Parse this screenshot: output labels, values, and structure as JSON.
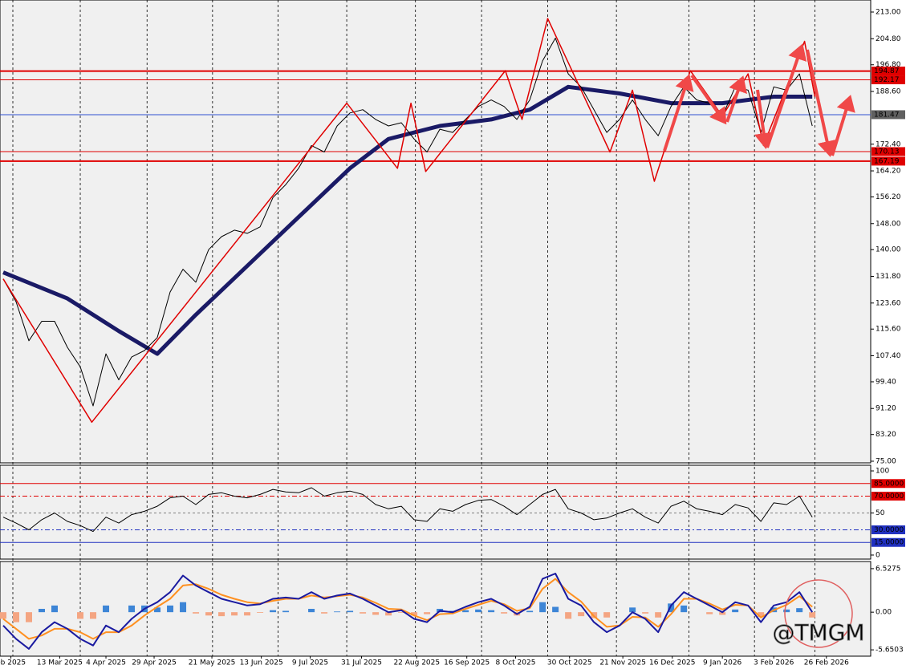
{
  "chart_data": [
    {
      "type": "line",
      "xlim": [
        -0.25,
        67.55
      ],
      "ylim": [
        74.5,
        216.7
      ],
      "yticks": [
        {
          "value": 213,
          "label": "213.00"
        },
        {
          "value": 204.8,
          "label": "204.80"
        },
        {
          "value": 196.8,
          "label": "196.80"
        },
        {
          "value": 188.6,
          "label": "188.60"
        },
        {
          "value": 172.4,
          "label": "172.40"
        },
        {
          "value": 164.2,
          "label": "164.20"
        },
        {
          "value": 156.2,
          "label": "156.20"
        },
        {
          "value": 148,
          "label": "148.00"
        },
        {
          "value": 140,
          "label": "140.00"
        },
        {
          "value": 131.8,
          "label": "131.80"
        },
        {
          "value": 123.6,
          "label": "123.60"
        },
        {
          "value": 115.6,
          "label": "115.60"
        },
        {
          "value": 107.4,
          "label": "107.40"
        },
        {
          "value": 99.4,
          "label": "99.40"
        },
        {
          "value": 91.2,
          "label": "91.20"
        },
        {
          "value": 83.2,
          "label": "83.20"
        },
        {
          "value": 75,
          "label": "75.00"
        }
      ],
      "xticks": [
        {
          "value": 0.6,
          "label": "eb 2025"
        },
        {
          "value": 4.4,
          "label": "13 Mar 2025"
        },
        {
          "value": 8,
          "label": "4 Apr 2025"
        },
        {
          "value": 11.75,
          "label": "29 Apr 2025"
        },
        {
          "value": 16.25,
          "label": "21 May 2025"
        },
        {
          "value": 20.1,
          "label": "13 Jun 2025"
        },
        {
          "value": 23.9,
          "label": "9 Jul 2025"
        },
        {
          "value": 27.9,
          "label": "31 Jul 2025"
        },
        {
          "value": 32.2,
          "label": "22 Aug 2025"
        },
        {
          "value": 36.1,
          "label": "16 Sep 2025"
        },
        {
          "value": 39.9,
          "label": "8 Oct 2025"
        },
        {
          "value": 44.1,
          "label": "30 Oct 2025"
        },
        {
          "value": 48.25,
          "label": "21 Nov 2025"
        },
        {
          "value": 52.1,
          "label": "16 Dec 2025"
        },
        {
          "value": 56,
          "label": "9 Jan 2026"
        },
        {
          "value": 60,
          "label": "3 Feb 2026"
        },
        {
          "value": 64.1,
          "label": "26 Feb 2026"
        }
      ],
      "xgrid": [
        0.75,
        6,
        11.2,
        16.3,
        21.4,
        26.75,
        32.1,
        37.25,
        42.4,
        47.75,
        53.4,
        58.5,
        63.2
      ],
      "levels": [
        {
          "value": 194.87,
          "color": "#e00000",
          "width": 2,
          "box": true
        },
        {
          "value": 192.17,
          "color": "#e00000",
          "width": 1,
          "box": true
        },
        {
          "value": 181.47,
          "color": "#3050d0",
          "width": 1,
          "box": true,
          "box_color": "#606060"
        },
        {
          "value": 170.13,
          "color": "#e00000",
          "width": 1,
          "box": true
        },
        {
          "value": 167.19,
          "color": "#e00000",
          "width": 2,
          "box": true
        }
      ],
      "series": [
        {
          "color": "#1a1a66",
          "width": 5,
          "x": [
            0,
            5,
            9,
            12,
            15,
            19,
            23,
            27,
            30,
            34,
            38,
            41,
            44,
            48,
            52,
            56,
            60,
            63
          ],
          "values": [
            133,
            125,
            115,
            108,
            120,
            135,
            150,
            165,
            174,
            178,
            180,
            183,
            190,
            188,
            185,
            185,
            187,
            187
          ]
        },
        {
          "color": "#000000",
          "width": 1,
          "values": [
            131,
            124,
            112,
            118,
            118,
            110,
            104,
            92,
            108,
            100,
            107,
            109,
            113,
            127,
            134,
            130,
            140,
            144,
            146,
            145,
            147,
            156,
            160,
            165,
            172,
            170,
            178,
            182,
            183,
            180,
            178,
            179,
            174,
            170,
            177,
            176,
            180,
            184,
            186,
            184,
            180,
            186,
            198,
            205,
            194,
            190,
            183,
            176,
            180,
            186,
            180,
            175,
            184,
            190,
            186,
            185,
            181,
            190,
            189,
            176,
            190,
            189,
            194,
            178
          ]
        },
        {
          "color": "#e00000",
          "width": 1.5,
          "x": [
            0,
            6.9,
            26.75,
            30.7,
            31.75,
            32.9,
            39.1,
            40.4,
            42.4,
            47.25,
            49,
            50.7,
            53.5,
            56,
            58,
            59.2,
            62.4,
            63.2
          ],
          "values": [
            131,
            87,
            185,
            165,
            185,
            164,
            195,
            180,
            211,
            170,
            189,
            161,
            195,
            181,
            194,
            172,
            204,
            187
          ]
        }
      ]
    },
    {
      "type": "line",
      "ylim": [
        -4.8,
        106.7
      ],
      "yticks": [
        100,
        50,
        0
      ],
      "levels": [
        {
          "value": 85,
          "label": "85.0000",
          "color": "#e00000",
          "width": 1,
          "box": true
        },
        {
          "value": 70,
          "label": "70.0000",
          "color": "#e00000",
          "width": 1,
          "dash": "6 3 2 3",
          "box": true
        },
        {
          "value": 50,
          "color": "#808080",
          "width": 1,
          "dash": "3 3"
        },
        {
          "value": 30,
          "label": "30.0000",
          "color": "#2030c0",
          "width": 1,
          "dash": "6 3 2 3",
          "box": true
        },
        {
          "value": 15,
          "label": "15.0000",
          "color": "#2030c0",
          "width": 1,
          "box": true
        }
      ],
      "series": [
        {
          "color": "#000000",
          "width": 1,
          "values": [
            45,
            38,
            30,
            42,
            50,
            40,
            35,
            28,
            45,
            38,
            48,
            52,
            58,
            68,
            70,
            60,
            72,
            74,
            70,
            68,
            72,
            78,
            75,
            74,
            80,
            70,
            74,
            76,
            72,
            60,
            55,
            58,
            42,
            40,
            55,
            52,
            60,
            65,
            66,
            58,
            48,
            60,
            72,
            78,
            55,
            50,
            42,
            44,
            50,
            55,
            45,
            38,
            58,
            64,
            55,
            52,
            48,
            60,
            56,
            40,
            62,
            60,
            70,
            45
          ]
        }
      ]
    },
    {
      "type": "line",
      "ylim": [
        -6.6,
        7.6
      ],
      "yticks": [
        6.5275,
        {
          "value": 0,
          "label": "0.00"
        },
        -5.6503
      ],
      "series": [
        {
          "type": "bar",
          "color": "#3d85d6",
          "negative_color": "#f4a582",
          "values": [
            -1,
            -1.5,
            -1.5,
            0.5,
            1,
            0,
            -1,
            -1,
            1,
            0,
            1,
            1,
            0.7,
            1,
            1.5,
            -0.2,
            -0.5,
            -0.6,
            -0.5,
            -0.5,
            -0.1,
            0.3,
            0.2,
            0,
            0.5,
            -0.2,
            0.1,
            0.2,
            -0.2,
            -0.4,
            -0.5,
            -0.1,
            -0.5,
            -0.3,
            0.5,
            0.2,
            0.3,
            0.4,
            0.3,
            -0.2,
            -0.5,
            0.2,
            1.5,
            0.8,
            -1,
            -0.6,
            -0.9,
            -0.8,
            0,
            0.7,
            -0.2,
            -0.8,
            1.3,
            1,
            0,
            -0.3,
            -0.4,
            0.4,
            0,
            -0.7,
            0.7,
            0.4,
            0.6,
            -0.8
          ]
        },
        {
          "color": "#ff9020",
          "width": 2,
          "values": [
            -1,
            -2.5,
            -4,
            -3.5,
            -2.5,
            -2.5,
            -3,
            -4,
            -3,
            -3,
            -2,
            -0.5,
            0.8,
            2,
            4,
            4.2,
            3.5,
            2.6,
            2,
            1.5,
            1.3,
            1.7,
            2,
            2,
            2.5,
            2.2,
            2.4,
            2.6,
            2.2,
            1.4,
            0.5,
            0.4,
            -0.5,
            -1.2,
            -0.3,
            -0.2,
            0.5,
            1.1,
            1.7,
            1.2,
            0.2,
            0.6,
            3.5,
            5,
            3,
            1.6,
            -0.6,
            -2.2,
            -2,
            -0.7,
            -0.8,
            -2.2,
            -0.3,
            2,
            2,
            1.3,
            0.4,
            1.1,
            1,
            -0.8,
            0.3,
            1.1,
            2.4,
            0.8
          ]
        },
        {
          "color": "#1a1aa0",
          "width": 2,
          "values": [
            -2,
            -4,
            -5.5,
            -3,
            -1.5,
            -2.5,
            -4,
            -5,
            -2,
            -3,
            -1,
            0.5,
            1.5,
            3,
            5.5,
            4,
            3,
            2,
            1.5,
            1,
            1.2,
            2,
            2.2,
            2,
            3,
            2,
            2.5,
            2.8,
            2,
            1,
            0,
            0.3,
            -1,
            -1.5,
            0.2,
            0,
            0.8,
            1.5,
            2,
            1,
            -0.3,
            0.8,
            5,
            5.8,
            2,
            1,
            -1.5,
            -3,
            -2,
            0,
            -1,
            -3,
            1,
            3,
            2,
            1,
            0,
            1.5,
            1,
            -1.5,
            1,
            1.5,
            3,
            0
          ]
        }
      ]
    }
  ],
  "watermark": "@TMGM"
}
